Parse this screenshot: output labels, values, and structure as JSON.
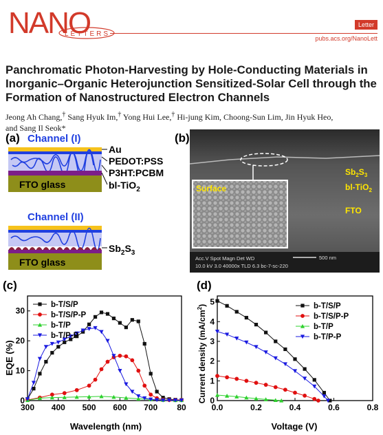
{
  "header": {
    "logo_text": "NANO",
    "logo_sub": "LETTERS",
    "badge": "Letter",
    "url": "pubs.acs.org/NanoLett",
    "accent": "#d23a2a"
  },
  "title": "Panchromatic Photon-Harvesting by Hole-Conducting Materials in Inorganic–Organic Heterojunction Sensitized-Solar Cell through the Formation of Nanostructured Electron Channels",
  "authors": [
    {
      "name": "Jeong Ah Chang,",
      "mark": "†"
    },
    {
      "name": "Sang Hyuk Im,",
      "mark": "†"
    },
    {
      "name": "Yong Hui Lee,",
      "mark": "†"
    },
    {
      "name": "Hi-jung Kim, Choong-Sun Lim, Jin Hyuk Heo,",
      "mark": ""
    },
    {
      "name": "and Sang Il Seok*",
      "mark": ""
    }
  ],
  "panel_a": {
    "label": "(a)",
    "channel1": "Channel (I)",
    "channel2": "Channel (II)",
    "layers": [
      "Au",
      "PEDOT:PSS",
      "P3HT:PCBM",
      "bl-TiO",
      "2"
    ],
    "fto": "FTO glass",
    "sb": "Sb",
    "sb_sub1": "2",
    "sb_mid": "S",
    "sb_sub2": "3",
    "colors": {
      "au": "#f6c21c",
      "blue": "#1f3fe0",
      "organic": "#c5c8f4",
      "purple": "#7c1e88",
      "fto": "#8e8e1a"
    }
  },
  "panel_b": {
    "label": "(b)",
    "surface": "Surface",
    "sb": "Sb",
    "sb_sub1": "2",
    "sb_mid": "S",
    "sb_sub2": "3",
    "tio": "bl-TiO",
    "tio_sub": "2",
    "fto": "FTO",
    "info_line1": "Acc.V  Spot Magn    Det  WD",
    "info_line2": "10.0 kV 3.0   40000x   TLD  6.3   bc-7-sc-220",
    "scale": "500 nm"
  },
  "chart_data": [
    {
      "type": "scatter",
      "panel": "(c)",
      "xlabel": "Wavelength (nm)",
      "ylabel": "EQE (%)",
      "xlim": [
        300,
        800
      ],
      "ylim": [
        0,
        35
      ],
      "xticks": [
        "300",
        "400",
        "500",
        "600",
        "700",
        "80"
      ],
      "yticks": [
        "0",
        "10",
        "20",
        "30"
      ],
      "legend": "top-left",
      "series": [
        {
          "name": "b-T/S/P",
          "color": "#111111",
          "marker": "square",
          "x": [
            300,
            320,
            340,
            360,
            380,
            400,
            420,
            440,
            460,
            480,
            500,
            520,
            540,
            560,
            580,
            600,
            620,
            640,
            660,
            680,
            700,
            720,
            740,
            760,
            780,
            800
          ],
          "y": [
            0.5,
            4,
            9,
            13,
            16,
            18,
            19.5,
            20.5,
            21.5,
            23,
            25.5,
            28,
            29.5,
            29,
            27.5,
            26,
            24.5,
            27,
            26.5,
            19,
            9,
            3,
            1,
            0.5,
            0.3,
            0.2
          ]
        },
        {
          "name": "b-T/S/P-P",
          "color": "#e01010",
          "marker": "circle",
          "x": [
            300,
            340,
            380,
            420,
            460,
            500,
            520,
            540,
            560,
            580,
            600,
            620,
            640,
            660,
            680,
            700,
            720,
            740,
            760,
            780,
            800
          ],
          "y": [
            0.2,
            1,
            2,
            2.5,
            3.5,
            5,
            7,
            10.5,
            13,
            14.5,
            15,
            14.8,
            13.5,
            10,
            5,
            2,
            0.8,
            0.3,
            0.2,
            0.2,
            0.2
          ]
        },
        {
          "name": "b-T/P",
          "color": "#2ed12e",
          "marker": "triangle-up",
          "x": [
            300,
            340,
            380,
            420,
            460,
            500,
            540,
            580,
            620,
            660,
            700,
            740,
            780,
            800
          ],
          "y": [
            0.1,
            0.8,
            1,
            1.1,
            1.2,
            1.3,
            1.4,
            1.2,
            0.9,
            0.6,
            0.4,
            0.2,
            0.1,
            0.1
          ]
        },
        {
          "name": "b-T/P-P",
          "color": "#1a1ae0",
          "marker": "triangle-down",
          "x": [
            300,
            320,
            340,
            360,
            380,
            400,
            420,
            440,
            460,
            480,
            500,
            520,
            540,
            560,
            580,
            600,
            620,
            640,
            660,
            680,
            700,
            720,
            740,
            760,
            780,
            800
          ],
          "y": [
            0.5,
            6,
            14,
            18,
            19,
            19.5,
            20.5,
            21.5,
            22.5,
            23.5,
            24,
            24.3,
            23,
            20,
            15,
            10,
            5.5,
            3,
            1.5,
            0.8,
            0.4,
            0.2,
            0.1,
            0.1,
            0.1,
            0.1
          ]
        }
      ]
    },
    {
      "type": "scatter",
      "panel": "(d)",
      "xlabel": "Voltage (V)",
      "ylabel": "Current density (mA/cm",
      "ylabel_sup": "2",
      "ylabel_end": ")",
      "xlim": [
        0,
        0.8
      ],
      "ylim": [
        0,
        5.3
      ],
      "xticks": [
        "0.0",
        "0.2",
        "0.4",
        "0.6",
        "0.8"
      ],
      "yticks": [
        "0",
        "1",
        "2",
        "3",
        "4",
        "5"
      ],
      "legend": "top-right",
      "series": [
        {
          "name": "b-T/S/P",
          "color": "#111111",
          "marker": "square",
          "x": [
            0,
            0.05,
            0.1,
            0.15,
            0.2,
            0.25,
            0.3,
            0.35,
            0.4,
            0.45,
            0.5,
            0.55,
            0.58
          ],
          "y": [
            5.05,
            4.8,
            4.5,
            4.2,
            3.85,
            3.45,
            3.0,
            2.6,
            2.1,
            1.6,
            1.05,
            0.4,
            0
          ]
        },
        {
          "name": "b-T/S/P-P",
          "color": "#e01010",
          "marker": "circle",
          "x": [
            0,
            0.05,
            0.1,
            0.15,
            0.2,
            0.25,
            0.3,
            0.35,
            0.4,
            0.45,
            0.5,
            0.52
          ],
          "y": [
            1.25,
            1.18,
            1.1,
            1.0,
            0.9,
            0.8,
            0.68,
            0.55,
            0.4,
            0.25,
            0.08,
            0
          ]
        },
        {
          "name": "b-T/P",
          "color": "#2ed12e",
          "marker": "triangle-up",
          "x": [
            0,
            0.05,
            0.1,
            0.15,
            0.2,
            0.25,
            0.3,
            0.33
          ],
          "y": [
            0.28,
            0.24,
            0.2,
            0.15,
            0.1,
            0.06,
            0.02,
            0
          ]
        },
        {
          "name": "b-T/P-P",
          "color": "#1a1ae0",
          "marker": "triangle-down",
          "x": [
            0,
            0.05,
            0.1,
            0.15,
            0.2,
            0.25,
            0.3,
            0.35,
            0.4,
            0.45,
            0.5,
            0.55,
            0.57
          ],
          "y": [
            3.5,
            3.35,
            3.15,
            2.95,
            2.72,
            2.45,
            2.15,
            1.85,
            1.5,
            1.12,
            0.72,
            0.22,
            0
          ]
        }
      ]
    }
  ]
}
